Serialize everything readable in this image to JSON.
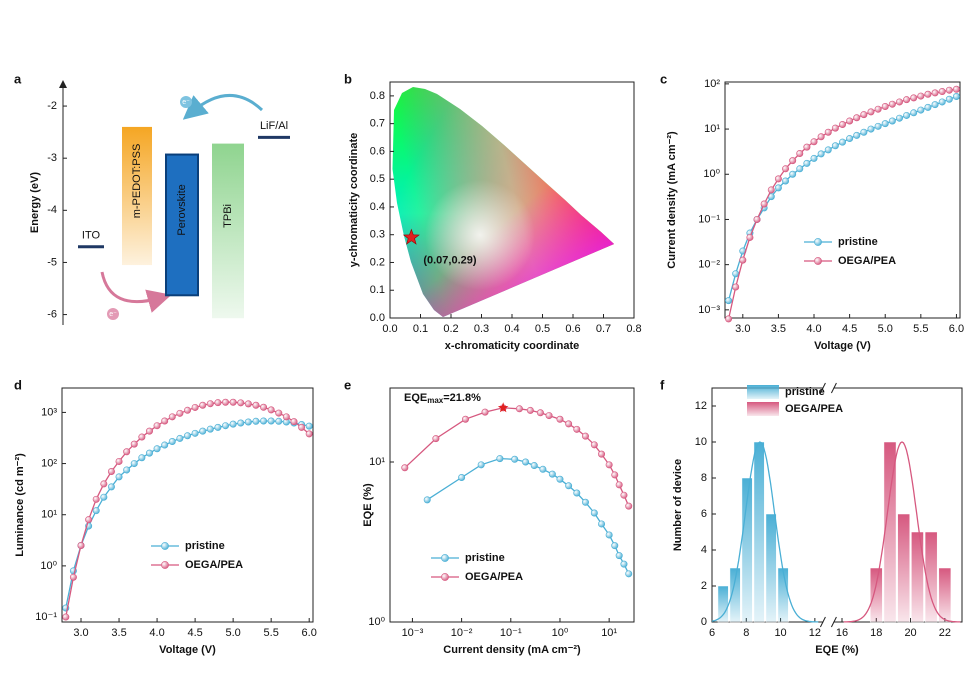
{
  "chart_data": [
    {
      "type": "energy",
      "panel_label": "a",
      "ylabel": "Energy (eV)",
      "ylim": [
        -6.2,
        -1.5
      ],
      "yticks": [
        -2,
        -3,
        -4,
        -5,
        -6
      ],
      "carrier": "e⁻",
      "lines": [
        {
          "name": "ITO",
          "value": -4.7,
          "color": "#1f3864"
        },
        {
          "name": "LiF/Al",
          "value": -2.6,
          "color": "#1f3864"
        }
      ],
      "bars": [
        {
          "name": "m-PEDOT:PSS",
          "top": -2.4,
          "bottom": -5.05,
          "color": "#f5a623"
        },
        {
          "name": "Perovskite",
          "top": -2.93,
          "bottom": -5.63,
          "color": "#1e6fc0"
        },
        {
          "name": "TPBi",
          "top": -2.72,
          "bottom": -6.07,
          "color": "#8fd48f"
        }
      ]
    },
    {
      "type": "scatter",
      "panel_label": "b",
      "xlabel": "x-chromaticity coordinate",
      "ylabel": "y-chromaticity coordinate",
      "xlim": [
        0,
        0.8
      ],
      "ylim": [
        0,
        0.85
      ],
      "xticks": [
        {
          "value": 0,
          "label": "0.0"
        },
        0.1,
        0.2,
        0.3,
        0.4,
        0.5,
        0.6,
        0.7,
        0.8
      ],
      "yticks": [
        {
          "value": 0,
          "label": "0.0"
        },
        0.1,
        0.2,
        0.3,
        0.4,
        0.5,
        0.6,
        0.7,
        0.8
      ],
      "points": [
        {
          "x": 0.07,
          "y": 0.29,
          "label": "(0.07,0.29)",
          "color": "#e02020"
        }
      ]
    },
    {
      "type": "line",
      "panel_label": "c",
      "xlabel": "Voltage (V)",
      "ylabel": "Current density (mA cm⁻²)",
      "xlim": [
        2.75,
        6.05
      ],
      "ylim": [
        0.00066,
        110
      ],
      "yscale": "log",
      "xticks": [
        {
          "value": 3,
          "label": "3.0"
        },
        3.5,
        {
          "value": 4,
          "label": "4.0"
        },
        4.5,
        {
          "value": 5,
          "label": "5.0"
        },
        5.5,
        {
          "value": 6,
          "label": "6.0"
        }
      ],
      "yticks": [
        {
          "value": 0.001,
          "label": "10⁻³"
        },
        {
          "value": 0.01,
          "label": "10⁻²"
        },
        {
          "value": 0.1,
          "label": "10⁻¹"
        },
        {
          "value": 1,
          "label": "10⁰"
        },
        {
          "value": 10,
          "label": "10¹"
        },
        {
          "value": 100,
          "label": "10²"
        }
      ],
      "x": [
        2.8,
        2.9,
        3.0,
        3.1,
        3.2,
        3.3,
        3.4,
        3.5,
        3.6,
        3.7,
        3.8,
        3.9,
        4.0,
        4.1,
        4.2,
        4.3,
        4.4,
        4.5,
        4.6,
        4.7,
        4.8,
        4.9,
        5.0,
        5.1,
        5.2,
        5.3,
        5.4,
        5.5,
        5.6,
        5.7,
        5.8,
        5.9,
        6.0
      ],
      "series": [
        {
          "name": "pristine",
          "color": "#4aafd5",
          "values": [
            0.0016,
            0.0063,
            0.02,
            0.05,
            0.1,
            0.18,
            0.32,
            0.5,
            0.71,
            1.0,
            1.32,
            1.74,
            2.24,
            2.82,
            3.47,
            4.27,
            5.13,
            6.17,
            7.24,
            8.51,
            10,
            11.5,
            13.2,
            15.1,
            17.4,
            20,
            22.9,
            26.3,
            30.2,
            34.7,
            39.8,
            45.7,
            52.5
          ]
        },
        {
          "name": "OEGA/PEA",
          "color": "#d6587f",
          "values": [
            0.00063,
            0.0032,
            0.0126,
            0.04,
            0.1,
            0.22,
            0.45,
            0.79,
            1.32,
            2.0,
            2.88,
            3.98,
            5.25,
            6.76,
            8.51,
            10.5,
            12.6,
            15.1,
            17.8,
            20.9,
            24,
            27.5,
            31.6,
            35.5,
            39.8,
            44.7,
            49,
            53.7,
            58.9,
            63.1,
            67.6,
            72.4,
            75.9
          ]
        }
      ]
    },
    {
      "type": "line",
      "panel_label": "d",
      "xlabel": "Voltage (V)",
      "ylabel": "Luminance (cd m⁻²)",
      "xlim": [
        2.75,
        6.05
      ],
      "ylim": [
        0.08,
        3000
      ],
      "yscale": "log",
      "xticks": [
        {
          "value": 3,
          "label": "3.0"
        },
        3.5,
        {
          "value": 4,
          "label": "4.0"
        },
        4.5,
        {
          "value": 5,
          "label": "5.0"
        },
        5.5,
        {
          "value": 6,
          "label": "6.0"
        }
      ],
      "yticks": [
        {
          "value": 0.1,
          "label": "10⁻¹"
        },
        {
          "value": 1,
          "label": "10⁰"
        },
        {
          "value": 10,
          "label": "10¹"
        },
        {
          "value": 100,
          "label": "10²"
        },
        {
          "value": 1000,
          "label": "10³"
        }
      ],
      "x": [
        2.8,
        2.9,
        3.0,
        3.1,
        3.2,
        3.3,
        3.4,
        3.5,
        3.6,
        3.7,
        3.8,
        3.9,
        4.0,
        4.1,
        4.2,
        4.3,
        4.4,
        4.5,
        4.6,
        4.7,
        4.8,
        4.9,
        5.0,
        5.1,
        5.2,
        5.3,
        5.4,
        5.5,
        5.6,
        5.7,
        5.8,
        5.9,
        6.0
      ],
      "series": [
        {
          "name": "pristine",
          "color": "#4aafd5",
          "values": [
            0.15,
            0.8,
            2.5,
            6,
            12,
            22,
            35,
            55,
            75,
            100,
            130,
            160,
            195,
            230,
            270,
            310,
            350,
            390,
            430,
            470,
            510,
            550,
            590,
            620,
            650,
            670,
            680,
            680,
            670,
            650,
            620,
            580,
            540
          ]
        },
        {
          "name": "OEGA/PEA",
          "color": "#d6587f",
          "values": [
            0.1,
            0.6,
            2.5,
            8,
            20,
            40,
            70,
            110,
            170,
            240,
            330,
            430,
            550,
            680,
            820,
            960,
            1100,
            1250,
            1380,
            1480,
            1550,
            1580,
            1580,
            1540,
            1470,
            1380,
            1260,
            1120,
            970,
            820,
            660,
            510,
            380
          ]
        }
      ]
    },
    {
      "type": "line",
      "panel_label": "e",
      "xlabel": "Current density (mA cm⁻²)",
      "ylabel": "EQE (%)",
      "annotation": [
        "EQE",
        "max",
        "=21.8%"
      ],
      "xlim": [
        0.00035,
        32
      ],
      "ylim": [
        1,
        29
      ],
      "xscale": "log",
      "yscale": "log",
      "xticks": [
        {
          "value": 0.001,
          "label": "10⁻³"
        },
        {
          "value": 0.01,
          "label": "10⁻²"
        },
        {
          "value": 0.1,
          "label": "10⁻¹"
        },
        {
          "value": 1,
          "label": "10⁰"
        },
        {
          "value": 10,
          "label": "10¹"
        }
      ],
      "yticks": [
        {
          "value": 1,
          "label": "10⁰"
        },
        {
          "value": 10,
          "label": "10¹"
        }
      ],
      "series": [
        {
          "name": "pristine",
          "color": "#4aafd5",
          "x": [
            0.002,
            0.01,
            0.025,
            0.06,
            0.12,
            0.2,
            0.3,
            0.45,
            0.7,
            1.0,
            1.5,
            2.2,
            3.3,
            5,
            7,
            10,
            13,
            16,
            20,
            25
          ],
          "values": [
            5.8,
            8.0,
            9.6,
            10.5,
            10.4,
            10.0,
            9.5,
            9.0,
            8.4,
            7.8,
            7.1,
            6.4,
            5.6,
            4.8,
            4.1,
            3.5,
            3.0,
            2.6,
            2.3,
            2.0
          ]
        },
        {
          "name": "OEGA/PEA",
          "color": "#d6587f",
          "x": [
            0.0007,
            0.003,
            0.012,
            0.03,
            0.07,
            0.15,
            0.25,
            0.4,
            0.6,
            1.0,
            1.5,
            2.2,
            3.3,
            5,
            7,
            10,
            13,
            16,
            20,
            25
          ],
          "values": [
            9.2,
            14,
            18.5,
            20.5,
            21.8,
            21.5,
            21,
            20.3,
            19.5,
            18.5,
            17.3,
            16,
            14.5,
            12.8,
            11.2,
            9.6,
            8.3,
            7.2,
            6.2,
            5.3
          ]
        }
      ]
    },
    {
      "type": "histogram",
      "panel_label": "f",
      "xlabel": "EQE (%)",
      "ylabel": "Number of device",
      "xlim": [
        6,
        23
      ],
      "xbreak": [
        12.5,
        15.5
      ],
      "ylim": [
        0,
        13
      ],
      "xticks": [
        6,
        8,
        10,
        12,
        16,
        18,
        20,
        22
      ],
      "yticks": [
        0,
        2,
        4,
        6,
        8,
        10,
        12
      ],
      "series": [
        {
          "name": "pristine",
          "color": "#4aafd5",
          "bins": [
            6.3,
            7.0,
            7.7,
            8.4,
            9.1,
            9.8,
            10.5
          ],
          "counts": [
            2,
            3,
            8,
            10,
            6,
            3
          ],
          "fit": {
            "center": 8.8,
            "width": 0.85,
            "height": 10
          }
        },
        {
          "name": "OEGA/PEA",
          "color": "#d6587f",
          "bins": [
            17.6,
            18.4,
            19.2,
            20.0,
            20.8,
            21.6,
            22.4
          ],
          "counts": [
            3,
            10,
            6,
            5,
            5,
            3
          ],
          "fit": {
            "center": 19.5,
            "width": 0.85,
            "height": 10
          }
        }
      ]
    }
  ]
}
